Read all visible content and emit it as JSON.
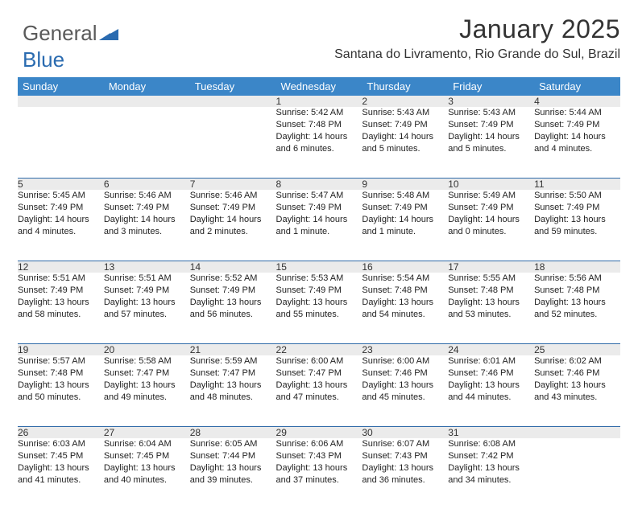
{
  "logo": {
    "part1": "General",
    "part2": "Blue",
    "mark_color": "#2a6bb0"
  },
  "title": "January 2025",
  "location": "Santana do Livramento, Rio Grande do Sul, Brazil",
  "header_bg": "#3b86c8",
  "header_text": "#ffffff",
  "daynum_bg": "#ebebeb",
  "rule_color": "#2f6aa8",
  "weekdays": [
    "Sunday",
    "Monday",
    "Tuesday",
    "Wednesday",
    "Thursday",
    "Friday",
    "Saturday"
  ],
  "weeks": [
    [
      null,
      null,
      null,
      {
        "n": "1",
        "sr": "5:42 AM",
        "ss": "7:48 PM",
        "dl": "14 hours and 6 minutes."
      },
      {
        "n": "2",
        "sr": "5:43 AM",
        "ss": "7:49 PM",
        "dl": "14 hours and 5 minutes."
      },
      {
        "n": "3",
        "sr": "5:43 AM",
        "ss": "7:49 PM",
        "dl": "14 hours and 5 minutes."
      },
      {
        "n": "4",
        "sr": "5:44 AM",
        "ss": "7:49 PM",
        "dl": "14 hours and 4 minutes."
      }
    ],
    [
      {
        "n": "5",
        "sr": "5:45 AM",
        "ss": "7:49 PM",
        "dl": "14 hours and 4 minutes."
      },
      {
        "n": "6",
        "sr": "5:46 AM",
        "ss": "7:49 PM",
        "dl": "14 hours and 3 minutes."
      },
      {
        "n": "7",
        "sr": "5:46 AM",
        "ss": "7:49 PM",
        "dl": "14 hours and 2 minutes."
      },
      {
        "n": "8",
        "sr": "5:47 AM",
        "ss": "7:49 PM",
        "dl": "14 hours and 1 minute."
      },
      {
        "n": "9",
        "sr": "5:48 AM",
        "ss": "7:49 PM",
        "dl": "14 hours and 1 minute."
      },
      {
        "n": "10",
        "sr": "5:49 AM",
        "ss": "7:49 PM",
        "dl": "14 hours and 0 minutes."
      },
      {
        "n": "11",
        "sr": "5:50 AM",
        "ss": "7:49 PM",
        "dl": "13 hours and 59 minutes."
      }
    ],
    [
      {
        "n": "12",
        "sr": "5:51 AM",
        "ss": "7:49 PM",
        "dl": "13 hours and 58 minutes."
      },
      {
        "n": "13",
        "sr": "5:51 AM",
        "ss": "7:49 PM",
        "dl": "13 hours and 57 minutes."
      },
      {
        "n": "14",
        "sr": "5:52 AM",
        "ss": "7:49 PM",
        "dl": "13 hours and 56 minutes."
      },
      {
        "n": "15",
        "sr": "5:53 AM",
        "ss": "7:49 PM",
        "dl": "13 hours and 55 minutes."
      },
      {
        "n": "16",
        "sr": "5:54 AM",
        "ss": "7:48 PM",
        "dl": "13 hours and 54 minutes."
      },
      {
        "n": "17",
        "sr": "5:55 AM",
        "ss": "7:48 PM",
        "dl": "13 hours and 53 minutes."
      },
      {
        "n": "18",
        "sr": "5:56 AM",
        "ss": "7:48 PM",
        "dl": "13 hours and 52 minutes."
      }
    ],
    [
      {
        "n": "19",
        "sr": "5:57 AM",
        "ss": "7:48 PM",
        "dl": "13 hours and 50 minutes."
      },
      {
        "n": "20",
        "sr": "5:58 AM",
        "ss": "7:47 PM",
        "dl": "13 hours and 49 minutes."
      },
      {
        "n": "21",
        "sr": "5:59 AM",
        "ss": "7:47 PM",
        "dl": "13 hours and 48 minutes."
      },
      {
        "n": "22",
        "sr": "6:00 AM",
        "ss": "7:47 PM",
        "dl": "13 hours and 47 minutes."
      },
      {
        "n": "23",
        "sr": "6:00 AM",
        "ss": "7:46 PM",
        "dl": "13 hours and 45 minutes."
      },
      {
        "n": "24",
        "sr": "6:01 AM",
        "ss": "7:46 PM",
        "dl": "13 hours and 44 minutes."
      },
      {
        "n": "25",
        "sr": "6:02 AM",
        "ss": "7:46 PM",
        "dl": "13 hours and 43 minutes."
      }
    ],
    [
      {
        "n": "26",
        "sr": "6:03 AM",
        "ss": "7:45 PM",
        "dl": "13 hours and 41 minutes."
      },
      {
        "n": "27",
        "sr": "6:04 AM",
        "ss": "7:45 PM",
        "dl": "13 hours and 40 minutes."
      },
      {
        "n": "28",
        "sr": "6:05 AM",
        "ss": "7:44 PM",
        "dl": "13 hours and 39 minutes."
      },
      {
        "n": "29",
        "sr": "6:06 AM",
        "ss": "7:43 PM",
        "dl": "13 hours and 37 minutes."
      },
      {
        "n": "30",
        "sr": "6:07 AM",
        "ss": "7:43 PM",
        "dl": "13 hours and 36 minutes."
      },
      {
        "n": "31",
        "sr": "6:08 AM",
        "ss": "7:42 PM",
        "dl": "13 hours and 34 minutes."
      },
      null
    ]
  ],
  "labels": {
    "sunrise": "Sunrise:",
    "sunset": "Sunset:",
    "daylight": "Daylight:"
  }
}
